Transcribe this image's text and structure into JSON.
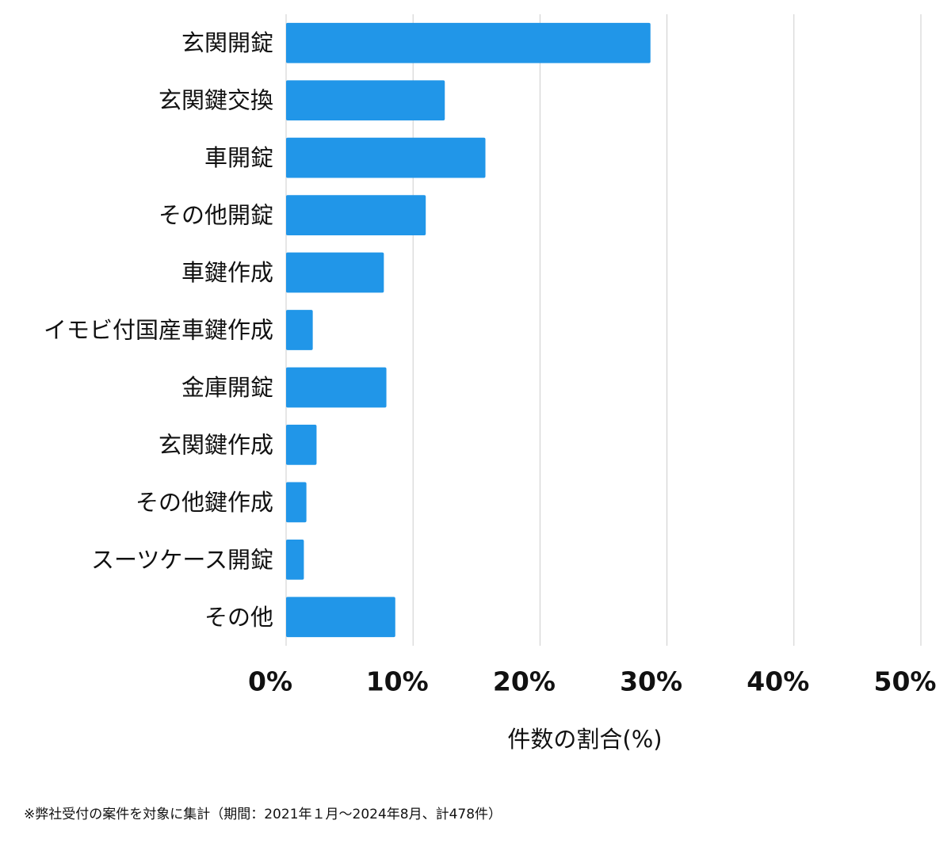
{
  "chart_data": {
    "type": "bar",
    "orientation": "horizontal",
    "categories": [
      "玄関開錠",
      "玄関鍵交換",
      "車開錠",
      "その他開錠",
      "車鍵作成",
      "イモビ付国産車鍵作成",
      "金庫開錠",
      "玄関鍵作成",
      "その他鍵作成",
      "スーツケース開錠",
      "その他"
    ],
    "values": [
      28.7,
      12.5,
      15.7,
      11.0,
      7.7,
      2.1,
      7.9,
      2.4,
      1.6,
      1.4,
      8.6
    ],
    "color": "#2196e8",
    "xlim": [
      0,
      50
    ],
    "xticks": [
      {
        "value": 0,
        "label": "0%"
      },
      {
        "value": 10,
        "label": "10%"
      },
      {
        "value": 20,
        "label": "20%"
      },
      {
        "value": 30,
        "label": "30%"
      },
      {
        "value": 40,
        "label": "40%"
      },
      {
        "value": 50,
        "label": "50%"
      }
    ],
    "grid": true,
    "x_label": "件数の割合(%)",
    "footnote": "※弊社受付の案件を対象に集計（期間：2021年１月～2024年8月、計478件）"
  }
}
